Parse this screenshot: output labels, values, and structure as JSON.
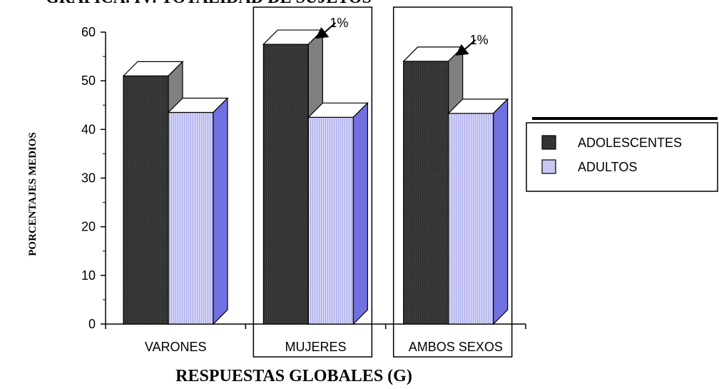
{
  "chart_data": {
    "type": "bar",
    "title": "GRAFICA. IV: TOTALIDAD DE SUJETOS",
    "xlabel": "RESPUESTAS GLOBALES (G)",
    "ylabel": "PORCENTAJES MEDIOS",
    "categories": [
      "VARONES",
      "MUJERES",
      "AMBOS SEXOS"
    ],
    "series": [
      {
        "name": "ADOLESCENTES",
        "values": [
          51,
          57.5,
          54
        ],
        "color": "#333333"
      },
      {
        "name": "ADULTOS",
        "values": [
          43.5,
          42.5,
          43.3
        ],
        "color": "#c8c8f5"
      }
    ],
    "ylim": [
      0,
      60
    ],
    "yticks": [
      0,
      10,
      20,
      30,
      40,
      50,
      60
    ],
    "annotations": [
      {
        "text": "1%",
        "category": "MUJERES"
      },
      {
        "text": "1%",
        "category": "AMBOS SEXOS"
      }
    ],
    "highlighted_categories": [
      "MUJERES",
      "AMBOS SEXOS"
    ],
    "legend_position": "right",
    "grid": false,
    "style": "3d",
    "side_colors": {
      "ADOLESCENTES": "#808080",
      "ADULTOS": "#7070e0"
    }
  }
}
